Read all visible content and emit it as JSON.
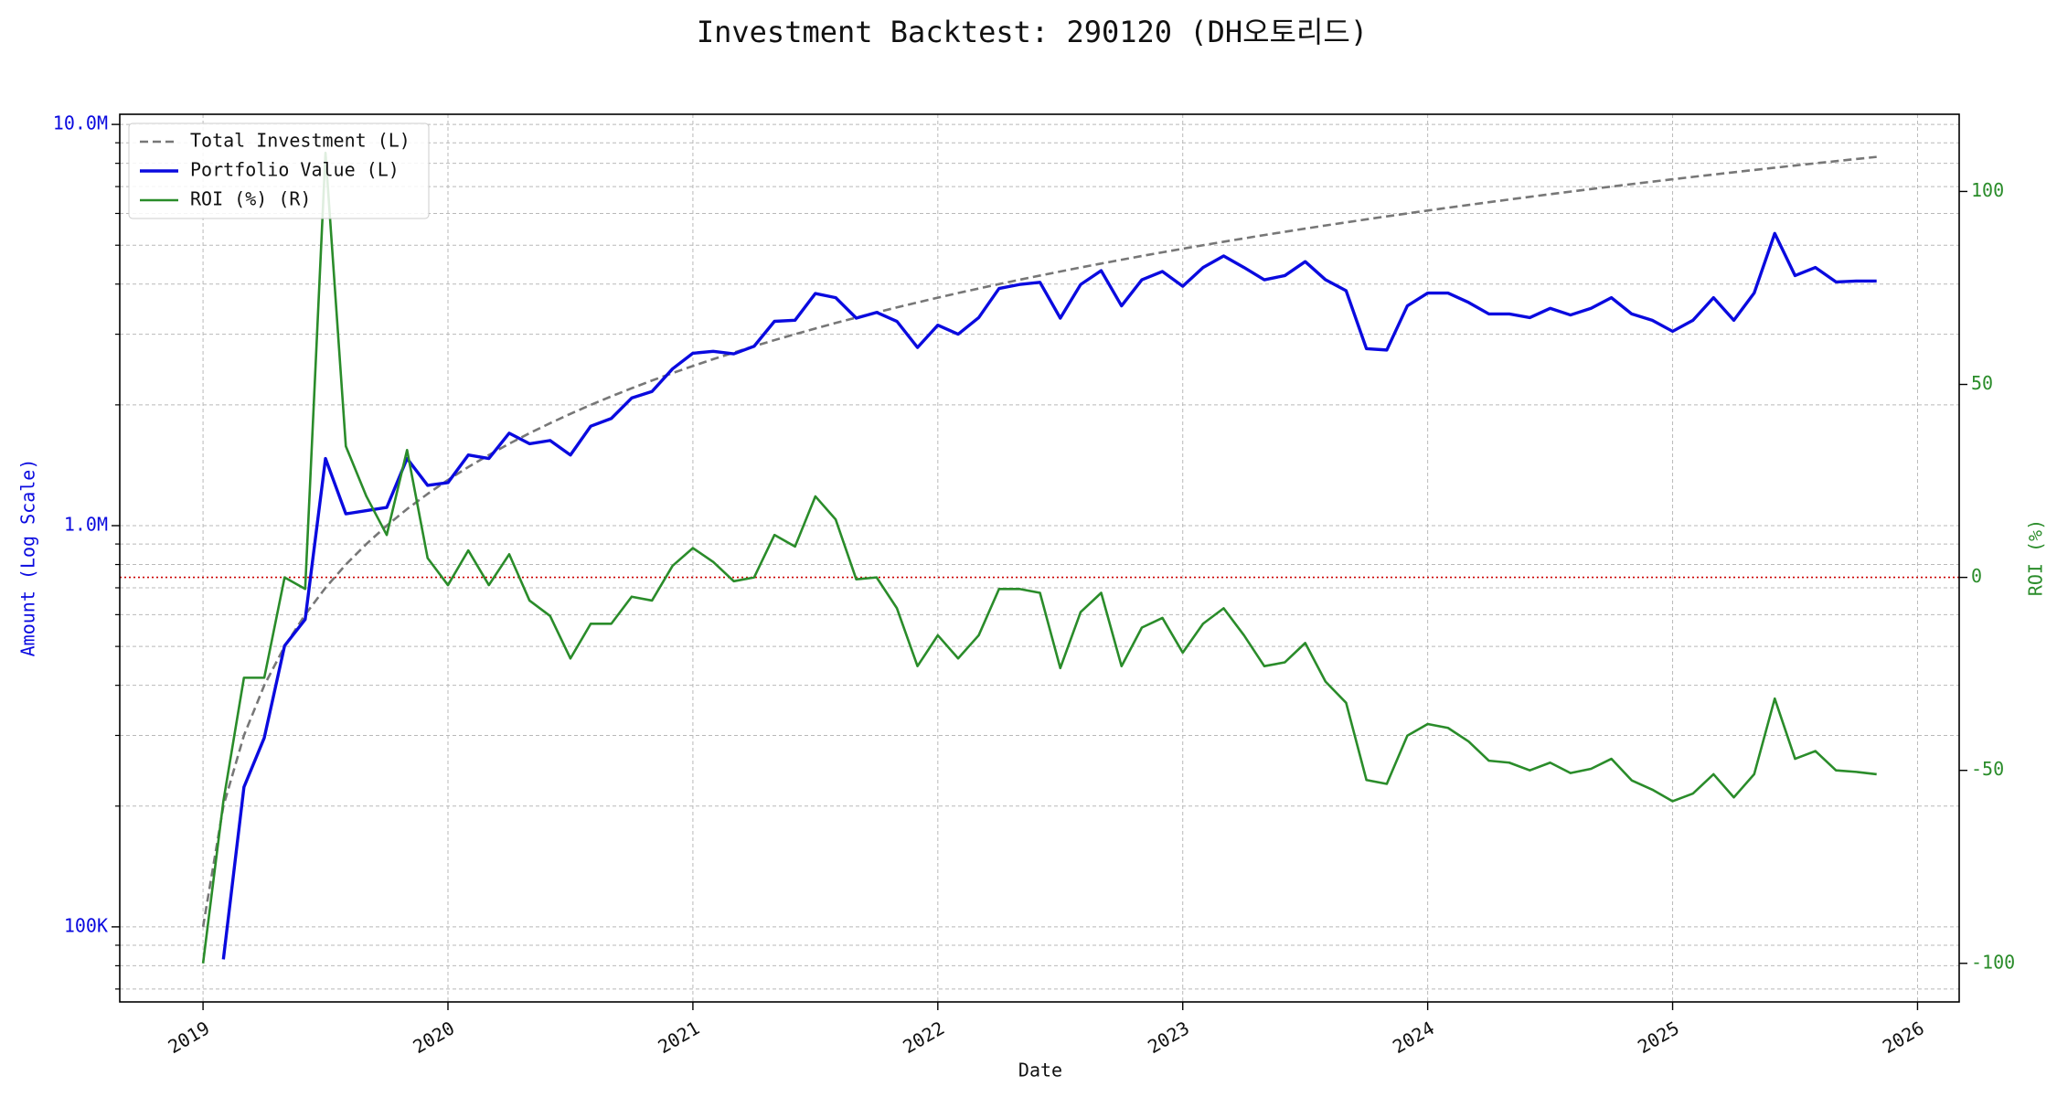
{
  "chart_data": {
    "type": "line",
    "title": "Investment Backtest: 290120 (DH오토리드)",
    "x_label": "Date",
    "y_label": "Amount (Log Scale)",
    "y2_label": "ROI (%)",
    "x": [
      2019,
      2019.083,
      2019.167,
      2019.25,
      2019.333,
      2019.417,
      2019.5,
      2019.583,
      2019.667,
      2019.75,
      2019.833,
      2019.917,
      2020,
      2020.083,
      2020.167,
      2020.25,
      2020.333,
      2020.417,
      2020.5,
      2020.583,
      2020.667,
      2020.75,
      2020.833,
      2020.917,
      2021,
      2021.083,
      2021.167,
      2021.25,
      2021.333,
      2021.417,
      2021.5,
      2021.583,
      2021.667,
      2021.75,
      2021.833,
      2021.917,
      2022,
      2022.083,
      2022.167,
      2022.25,
      2022.333,
      2022.417,
      2022.5,
      2022.583,
      2022.667,
      2022.75,
      2022.833,
      2022.917,
      2023,
      2023.083,
      2023.167,
      2023.25,
      2023.333,
      2023.417,
      2023.5,
      2023.583,
      2023.667,
      2023.75,
      2023.833,
      2023.917,
      2024,
      2024.083,
      2024.167,
      2024.25,
      2024.333,
      2024.417,
      2024.5,
      2024.583,
      2024.667,
      2024.75,
      2024.833,
      2024.917,
      2025,
      2025.083,
      2025.167,
      2025.25,
      2025.333,
      2025.417,
      2025.5,
      2025.583,
      2025.667,
      2025.75,
      2025.833
    ],
    "series": [
      {
        "name": "Total Investment (L)",
        "color": "#777777",
        "dash": true,
        "width": 2.6,
        "values": [
          100000,
          200000,
          300000,
          400000,
          500000,
          600000,
          700000,
          800000,
          900000,
          1000000,
          1100000,
          1200000,
          1300000,
          1400000,
          1500000,
          1600000,
          1700000,
          1800000,
          1900000,
          2000000,
          2100000,
          2200000,
          2300000,
          2400000,
          2500000,
          2600000,
          2700000,
          2800000,
          2900000,
          3000000,
          3100000,
          3200000,
          3300000,
          3400000,
          3500000,
          3600000,
          3700000,
          3800000,
          3900000,
          4000000,
          4100000,
          4200000,
          4300000,
          4400000,
          4500000,
          4600000,
          4700000,
          4800000,
          4900000,
          5000000,
          5100000,
          5200000,
          5300000,
          5400000,
          5500000,
          5600000,
          5700000,
          5800000,
          5900000,
          6000000,
          6100000,
          6200000,
          6300000,
          6400000,
          6500000,
          6600000,
          6700000,
          6800000,
          6900000,
          7000000,
          7100000,
          7200000,
          7300000,
          7400000,
          7500000,
          7600000,
          7700000,
          7800000,
          7900000,
          8000000,
          8100000,
          8200000,
          8300000
        ]
      },
      {
        "name": "Portfolio Value (L)",
        "color": "#0a0adf",
        "width": 3.4,
        "values": [
          null,
          83000,
          223000,
          296000,
          502000,
          584000,
          1470000,
          1070000,
          1090000,
          1110000,
          1470000,
          1260000,
          1280000,
          1500000,
          1470000,
          1700000,
          1600000,
          1630000,
          1500000,
          1770000,
          1850000,
          2080000,
          2160000,
          2460000,
          2690000,
          2720000,
          2680000,
          2800000,
          3230000,
          3250000,
          3790000,
          3700000,
          3290000,
          3400000,
          3230000,
          2780000,
          3160000,
          3000000,
          3300000,
          3900000,
          3990000,
          4040000,
          3290000,
          3990000,
          4320000,
          3530000,
          4100000,
          4300000,
          3950000,
          4400000,
          4700000,
          4400000,
          4100000,
          4200000,
          4550000,
          4100000,
          3850000,
          2760000,
          2740000,
          3530000,
          3800000,
          3800000,
          3600000,
          3370000,
          3370000,
          3300000,
          3480000,
          3350000,
          3480000,
          3700000,
          3370000,
          3250000,
          3050000,
          3250000,
          3700000,
          3250000,
          3800000,
          5350000,
          4200000,
          4400000,
          4050000,
          4070000,
          4070000
        ]
      },
      {
        "name": "ROI (%) (R)",
        "color": "#2a8c2a",
        "width": 2.6,
        "axis": "y2",
        "values": [
          -100,
          -58,
          -26,
          -26,
          0,
          -3,
          110,
          34,
          21,
          11,
          33,
          5,
          -2,
          7,
          -2,
          6,
          -6,
          -10,
          -21,
          -12,
          -12,
          -5,
          -6,
          3,
          7.6,
          4,
          -1,
          0,
          11,
          8,
          21,
          15,
          -0.5,
          0,
          -8,
          -23,
          -15,
          -21,
          -15,
          -3,
          -3,
          -4,
          -23.5,
          -9,
          -4,
          -23,
          -13,
          -10.5,
          -19.5,
          -12,
          -8,
          -15,
          -23,
          -22,
          -17,
          -27,
          -32.5,
          -52.5,
          -53.5,
          -41,
          -38,
          -39,
          -42.5,
          -47.5,
          -48,
          -50,
          -48,
          -50.7,
          -49.6,
          -47,
          -52.6,
          -55,
          -58,
          -56,
          -51,
          -57,
          -51,
          -31.4,
          -47,
          -45,
          -50,
          -50.4,
          -51
        ]
      }
    ],
    "xlim": [
      2018.66,
      2026.17
    ],
    "xticks": [
      2019,
      2020,
      2021,
      2022,
      2023,
      2024,
      2025,
      2026
    ],
    "ylog": true,
    "ylim": [
      65000,
      10600000
    ],
    "yticks": [
      {
        "value": 100000,
        "label": "100K"
      },
      {
        "value": 1000000,
        "label": "1.0M"
      },
      {
        "value": 10000000,
        "label": "10.0M"
      }
    ],
    "yminorticks": [
      70000,
      80000,
      90000,
      200000,
      300000,
      400000,
      500000,
      600000,
      700000,
      800000,
      900000,
      2000000,
      3000000,
      4000000,
      5000000,
      6000000,
      7000000,
      8000000,
      9000000
    ],
    "y2lim": [
      -110,
      120
    ],
    "y2ticks": [
      -100,
      -50,
      0,
      50,
      100
    ],
    "reference_line": {
      "value": 0,
      "axis": "y2",
      "color": "#cc0000"
    },
    "grid": true,
    "legend": "upper-left",
    "y_color": "#0a0adf",
    "y2_color": "#2a8c2a"
  }
}
